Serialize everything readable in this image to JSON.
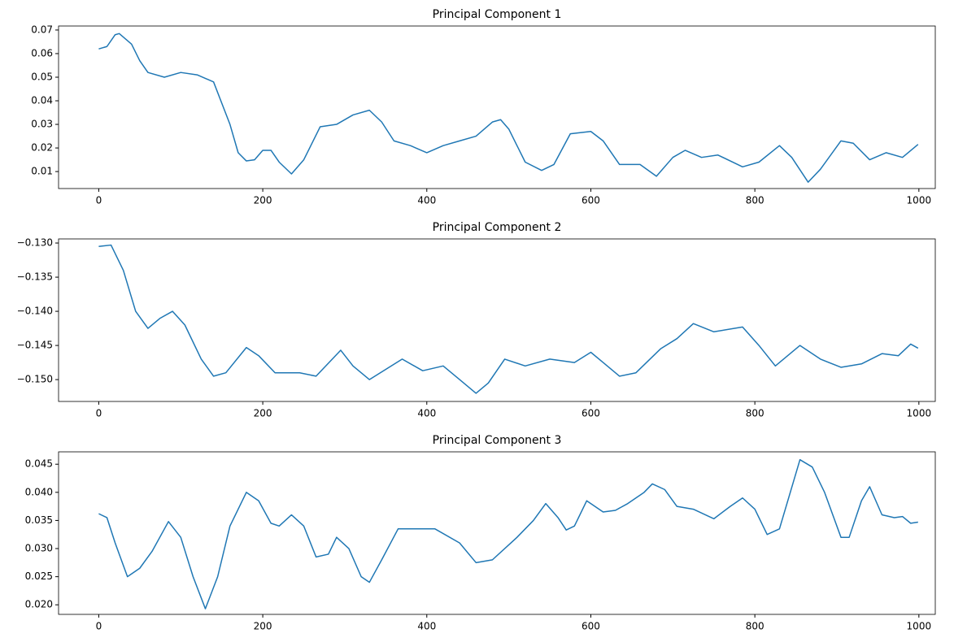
{
  "chart_data": [
    {
      "type": "line",
      "title": "Principal Component 1",
      "color": "#1f77b4",
      "x": [
        0,
        10,
        20,
        25,
        40,
        50,
        60,
        80,
        100,
        120,
        140,
        160,
        170,
        180,
        190,
        200,
        210,
        220,
        235,
        250,
        270,
        290,
        310,
        330,
        345,
        360,
        380,
        400,
        420,
        440,
        460,
        480,
        490,
        500,
        520,
        540,
        555,
        575,
        600,
        615,
        635,
        660,
        680,
        700,
        715,
        735,
        755,
        785,
        805,
        830,
        845,
        865,
        880,
        905,
        920,
        940,
        960,
        980,
        999
      ],
      "values": [
        0.062,
        0.063,
        0.068,
        0.0685,
        0.064,
        0.057,
        0.052,
        0.05,
        0.052,
        0.051,
        0.048,
        0.03,
        0.018,
        0.0145,
        0.015,
        0.019,
        0.019,
        0.014,
        0.009,
        0.015,
        0.029,
        0.03,
        0.034,
        0.036,
        0.031,
        0.023,
        0.021,
        0.018,
        0.021,
        0.023,
        0.025,
        0.031,
        0.032,
        0.028,
        0.014,
        0.0105,
        0.013,
        0.026,
        0.027,
        0.023,
        0.013,
        0.013,
        0.008,
        0.016,
        0.019,
        0.016,
        0.017,
        0.012,
        0.014,
        0.021,
        0.016,
        0.0055,
        0.011,
        0.023,
        0.022,
        0.015,
        0.018,
        0.016,
        0.0215
      ],
      "xlim": [
        -49,
        1020
      ],
      "xticks": [
        0,
        200,
        400,
        600,
        800,
        1000
      ],
      "ylim": [
        0.0028,
        0.0717
      ],
      "yticks": [
        0.01,
        0.02,
        0.03,
        0.04,
        0.05,
        0.06,
        0.07
      ]
    },
    {
      "type": "line",
      "title": "Principal Component 2",
      "color": "#1f77b4",
      "x": [
        0,
        15,
        30,
        45,
        60,
        75,
        90,
        105,
        125,
        140,
        155,
        180,
        195,
        215,
        245,
        265,
        295,
        310,
        330,
        350,
        370,
        395,
        420,
        440,
        460,
        475,
        495,
        520,
        550,
        580,
        600,
        615,
        635,
        655,
        685,
        705,
        725,
        750,
        785,
        805,
        825,
        855,
        880,
        905,
        930,
        955,
        975,
        990,
        999
      ],
      "values": [
        -0.1305,
        -0.1303,
        -0.134,
        -0.14,
        -0.1425,
        -0.141,
        -0.14,
        -0.142,
        -0.147,
        -0.1495,
        -0.149,
        -0.1453,
        -0.1465,
        -0.149,
        -0.149,
        -0.1495,
        -0.1457,
        -0.148,
        -0.15,
        -0.1485,
        -0.147,
        -0.1487,
        -0.148,
        -0.15,
        -0.152,
        -0.1505,
        -0.147,
        -0.148,
        -0.147,
        -0.1475,
        -0.146,
        -0.1475,
        -0.1495,
        -0.149,
        -0.1455,
        -0.144,
        -0.1418,
        -0.143,
        -0.1423,
        -0.145,
        -0.148,
        -0.145,
        -0.147,
        -0.1482,
        -0.1477,
        -0.1462,
        -0.1465,
        -0.1448,
        -0.1454
      ],
      "xlim": [
        -49,
        1020
      ],
      "xticks": [
        0,
        200,
        400,
        600,
        800,
        1000
      ],
      "ylim": [
        -0.1532,
        -0.1294
      ],
      "yticks": [
        {
          "value": -0.15,
          "label": "−0.150"
        },
        {
          "value": -0.145,
          "label": "−0.145"
        },
        {
          "value": -0.14,
          "label": "−0.140"
        },
        {
          "value": -0.135,
          "label": "−0.135"
        },
        {
          "value": -0.13,
          "label": "−0.130"
        }
      ]
    },
    {
      "type": "line",
      "title": "Principal Component 3",
      "color": "#1f77b4",
      "x": [
        0,
        10,
        20,
        35,
        50,
        65,
        85,
        100,
        115,
        130,
        145,
        160,
        180,
        195,
        210,
        220,
        235,
        250,
        265,
        280,
        290,
        305,
        320,
        330,
        345,
        365,
        385,
        410,
        440,
        460,
        480,
        510,
        530,
        545,
        560,
        570,
        580,
        595,
        615,
        630,
        645,
        665,
        675,
        690,
        705,
        725,
        750,
        770,
        785,
        800,
        815,
        830,
        855,
        870,
        885,
        905,
        915,
        930,
        940,
        955,
        970,
        980,
        990,
        999
      ],
      "values": [
        0.0362,
        0.0355,
        0.031,
        0.025,
        0.0265,
        0.0295,
        0.0348,
        0.032,
        0.025,
        0.0193,
        0.025,
        0.034,
        0.04,
        0.0385,
        0.0345,
        0.034,
        0.036,
        0.034,
        0.0285,
        0.029,
        0.032,
        0.03,
        0.025,
        0.024,
        0.028,
        0.0335,
        0.0335,
        0.0335,
        0.031,
        0.0275,
        0.028,
        0.032,
        0.035,
        0.038,
        0.0355,
        0.0333,
        0.034,
        0.0385,
        0.0365,
        0.0368,
        0.038,
        0.04,
        0.0415,
        0.0405,
        0.0375,
        0.037,
        0.0353,
        0.0375,
        0.039,
        0.037,
        0.0325,
        0.0335,
        0.0458,
        0.0445,
        0.04,
        0.032,
        0.032,
        0.0385,
        0.041,
        0.036,
        0.0355,
        0.0357,
        0.0345,
        0.0347
      ],
      "xlim": [
        -49,
        1020
      ],
      "xticks": [
        0,
        200,
        400,
        600,
        800,
        1000
      ],
      "ylim": [
        0.0183,
        0.0472
      ],
      "yticks": [
        {
          "value": 0.02,
          "label": "0.020"
        },
        {
          "value": 0.025,
          "label": "0.025"
        },
        {
          "value": 0.03,
          "label": "0.030"
        },
        {
          "value": 0.035,
          "label": "0.035"
        },
        {
          "value": 0.04,
          "label": "0.040"
        },
        {
          "value": 0.045,
          "label": "0.045"
        }
      ]
    }
  ]
}
